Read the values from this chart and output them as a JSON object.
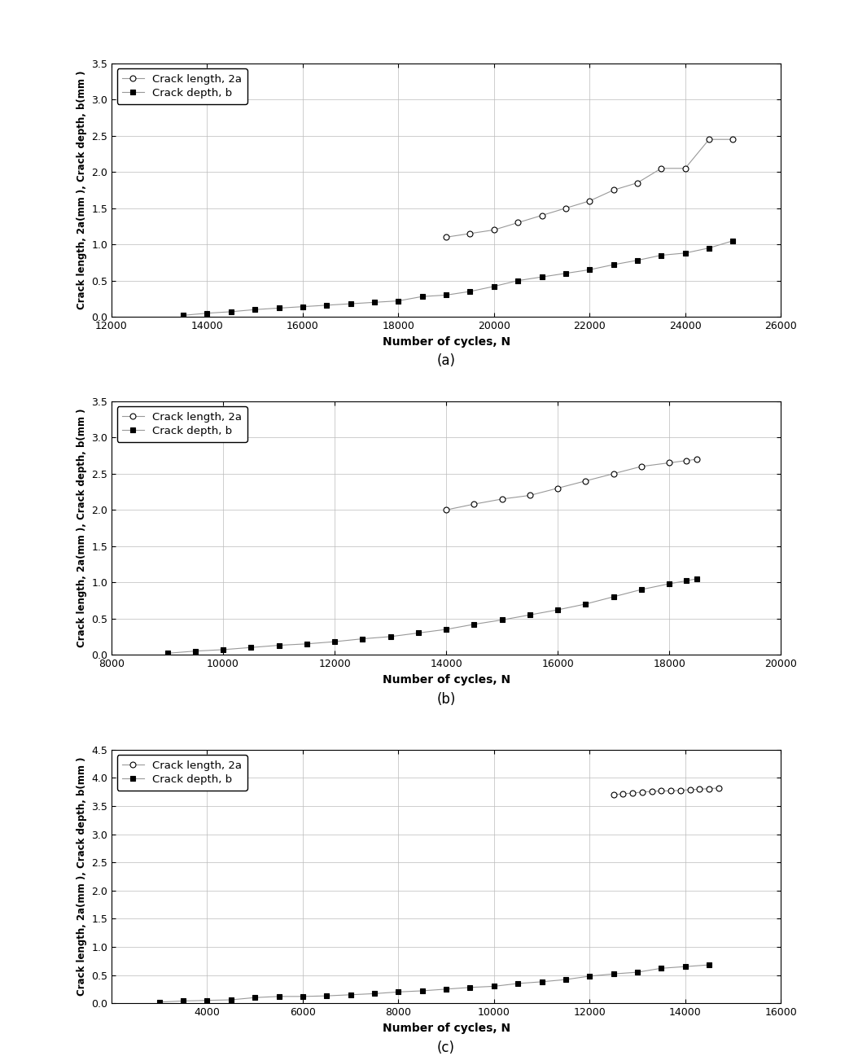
{
  "subplot_a": {
    "crack_length_2a_x": [
      19000,
      19500,
      20000,
      20500,
      21000,
      21500,
      22000,
      22500,
      23000,
      23500,
      24000,
      24500,
      25000
    ],
    "crack_length_2a_y": [
      1.1,
      1.15,
      1.2,
      1.3,
      1.4,
      1.5,
      1.6,
      1.75,
      1.85,
      2.05,
      2.05,
      2.45,
      2.45
    ],
    "crack_depth_b_x": [
      13500,
      14000,
      14500,
      15000,
      15500,
      16000,
      16500,
      17000,
      17500,
      18000,
      18500,
      19000,
      19500,
      20000,
      20500,
      21000,
      21500,
      22000,
      22500,
      23000,
      23500,
      24000,
      24500,
      25000
    ],
    "crack_depth_b_y": [
      0.02,
      0.05,
      0.07,
      0.1,
      0.12,
      0.14,
      0.16,
      0.18,
      0.2,
      0.22,
      0.28,
      0.3,
      0.35,
      0.42,
      0.5,
      0.55,
      0.6,
      0.65,
      0.72,
      0.78,
      0.85,
      0.88,
      0.95,
      1.05
    ],
    "xlim": [
      12000,
      26000
    ],
    "ylim": [
      0,
      3.5
    ],
    "xticks": [
      12000,
      14000,
      16000,
      18000,
      20000,
      22000,
      24000,
      26000
    ],
    "yticks": [
      0.0,
      0.5,
      1.0,
      1.5,
      2.0,
      2.5,
      3.0,
      3.5
    ],
    "xlabel": "Number of cycles, N",
    "ylabel": "Crack length, 2a(mm ), Crack depth, b(mm )",
    "label": "(a)"
  },
  "subplot_b": {
    "crack_length_2a_x": [
      14000,
      14500,
      15000,
      15500,
      16000,
      16500,
      17000,
      17500,
      18000,
      18300,
      18500
    ],
    "crack_length_2a_y": [
      2.0,
      2.08,
      2.15,
      2.2,
      2.3,
      2.4,
      2.5,
      2.6,
      2.65,
      2.68,
      2.7
    ],
    "crack_depth_b_x": [
      9000,
      9500,
      10000,
      10500,
      11000,
      11500,
      12000,
      12500,
      13000,
      13500,
      14000,
      14500,
      15000,
      15500,
      16000,
      16500,
      17000,
      17500,
      18000,
      18300,
      18500
    ],
    "crack_depth_b_y": [
      0.02,
      0.05,
      0.07,
      0.1,
      0.13,
      0.15,
      0.18,
      0.22,
      0.25,
      0.3,
      0.35,
      0.42,
      0.48,
      0.55,
      0.62,
      0.7,
      0.8,
      0.9,
      0.98,
      1.02,
      1.05
    ],
    "xlim": [
      8000,
      20000
    ],
    "ylim": [
      0,
      3.5
    ],
    "xticks": [
      8000,
      10000,
      12000,
      14000,
      16000,
      18000,
      20000
    ],
    "yticks": [
      0.0,
      0.5,
      1.0,
      1.5,
      2.0,
      2.5,
      3.0,
      3.5
    ],
    "xlabel": "Number of cycles, N",
    "ylabel": "Crack length, 2a(mm ), Crack depth, b(mm )",
    "label": "(b)"
  },
  "subplot_c": {
    "crack_length_2a_x": [
      12500,
      12700,
      12900,
      13100,
      13300,
      13500,
      13700,
      13900,
      14100,
      14300,
      14500,
      14700
    ],
    "crack_length_2a_y": [
      3.7,
      3.72,
      3.73,
      3.75,
      3.76,
      3.77,
      3.77,
      3.78,
      3.79,
      3.8,
      3.81,
      3.82
    ],
    "crack_depth_b_x": [
      3000,
      3500,
      4000,
      4500,
      5000,
      5500,
      6000,
      6500,
      7000,
      7500,
      8000,
      8500,
      9000,
      9500,
      10000,
      10500,
      11000,
      11500,
      12000,
      12500,
      13000,
      13500,
      14000,
      14500
    ],
    "crack_depth_b_y": [
      0.02,
      0.04,
      0.05,
      0.06,
      0.1,
      0.12,
      0.12,
      0.13,
      0.15,
      0.17,
      0.2,
      0.22,
      0.25,
      0.28,
      0.3,
      0.35,
      0.38,
      0.42,
      0.48,
      0.52,
      0.55,
      0.62,
      0.65,
      0.68
    ],
    "xlim": [
      2000,
      16000
    ],
    "ylim": [
      0,
      4.5
    ],
    "xticks": [
      4000,
      6000,
      8000,
      10000,
      12000,
      14000,
      16000
    ],
    "yticks": [
      0.0,
      0.5,
      1.0,
      1.5,
      2.0,
      2.5,
      3.0,
      3.5,
      4.0,
      4.5
    ],
    "xlabel": "Number of cycles, N",
    "ylabel": "Crack length, 2a(mm ), Crack depth, b(mm )",
    "label": "(c)"
  },
  "legend_entries": [
    "Crack length, 2a",
    "Crack depth, b"
  ],
  "background_color": "#ffffff",
  "line_color": "#999999",
  "open_marker": "o",
  "filled_marker": "s",
  "marker_size": 5,
  "line_width": 0.8,
  "fig_width": 10.54,
  "fig_height": 12.97,
  "dpi": 100
}
